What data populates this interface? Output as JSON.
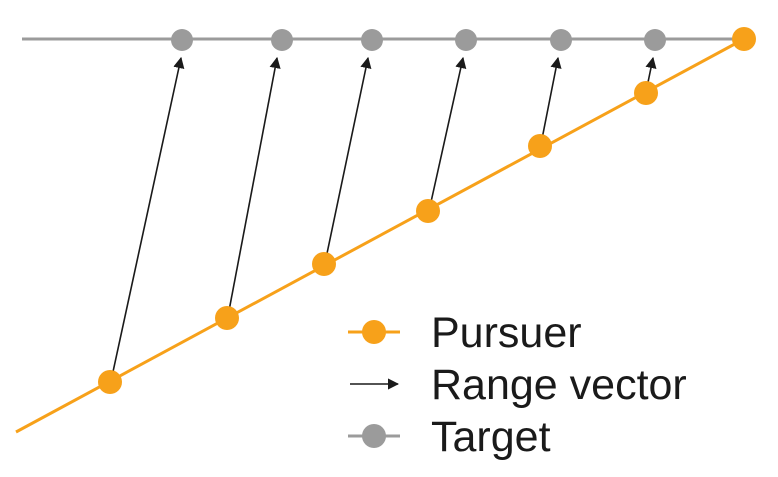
{
  "diagram": {
    "legend": {
      "pursuer": "Pursuer",
      "range_vector": "Range vector",
      "target": "Target"
    },
    "colors": {
      "pursuer": "#F7A11A",
      "target": "#9B9B9B",
      "target_line": "#9B9B9B",
      "vector": "#1a1a1a",
      "text": "#1a1a1a"
    },
    "pairs_count": 6
  }
}
